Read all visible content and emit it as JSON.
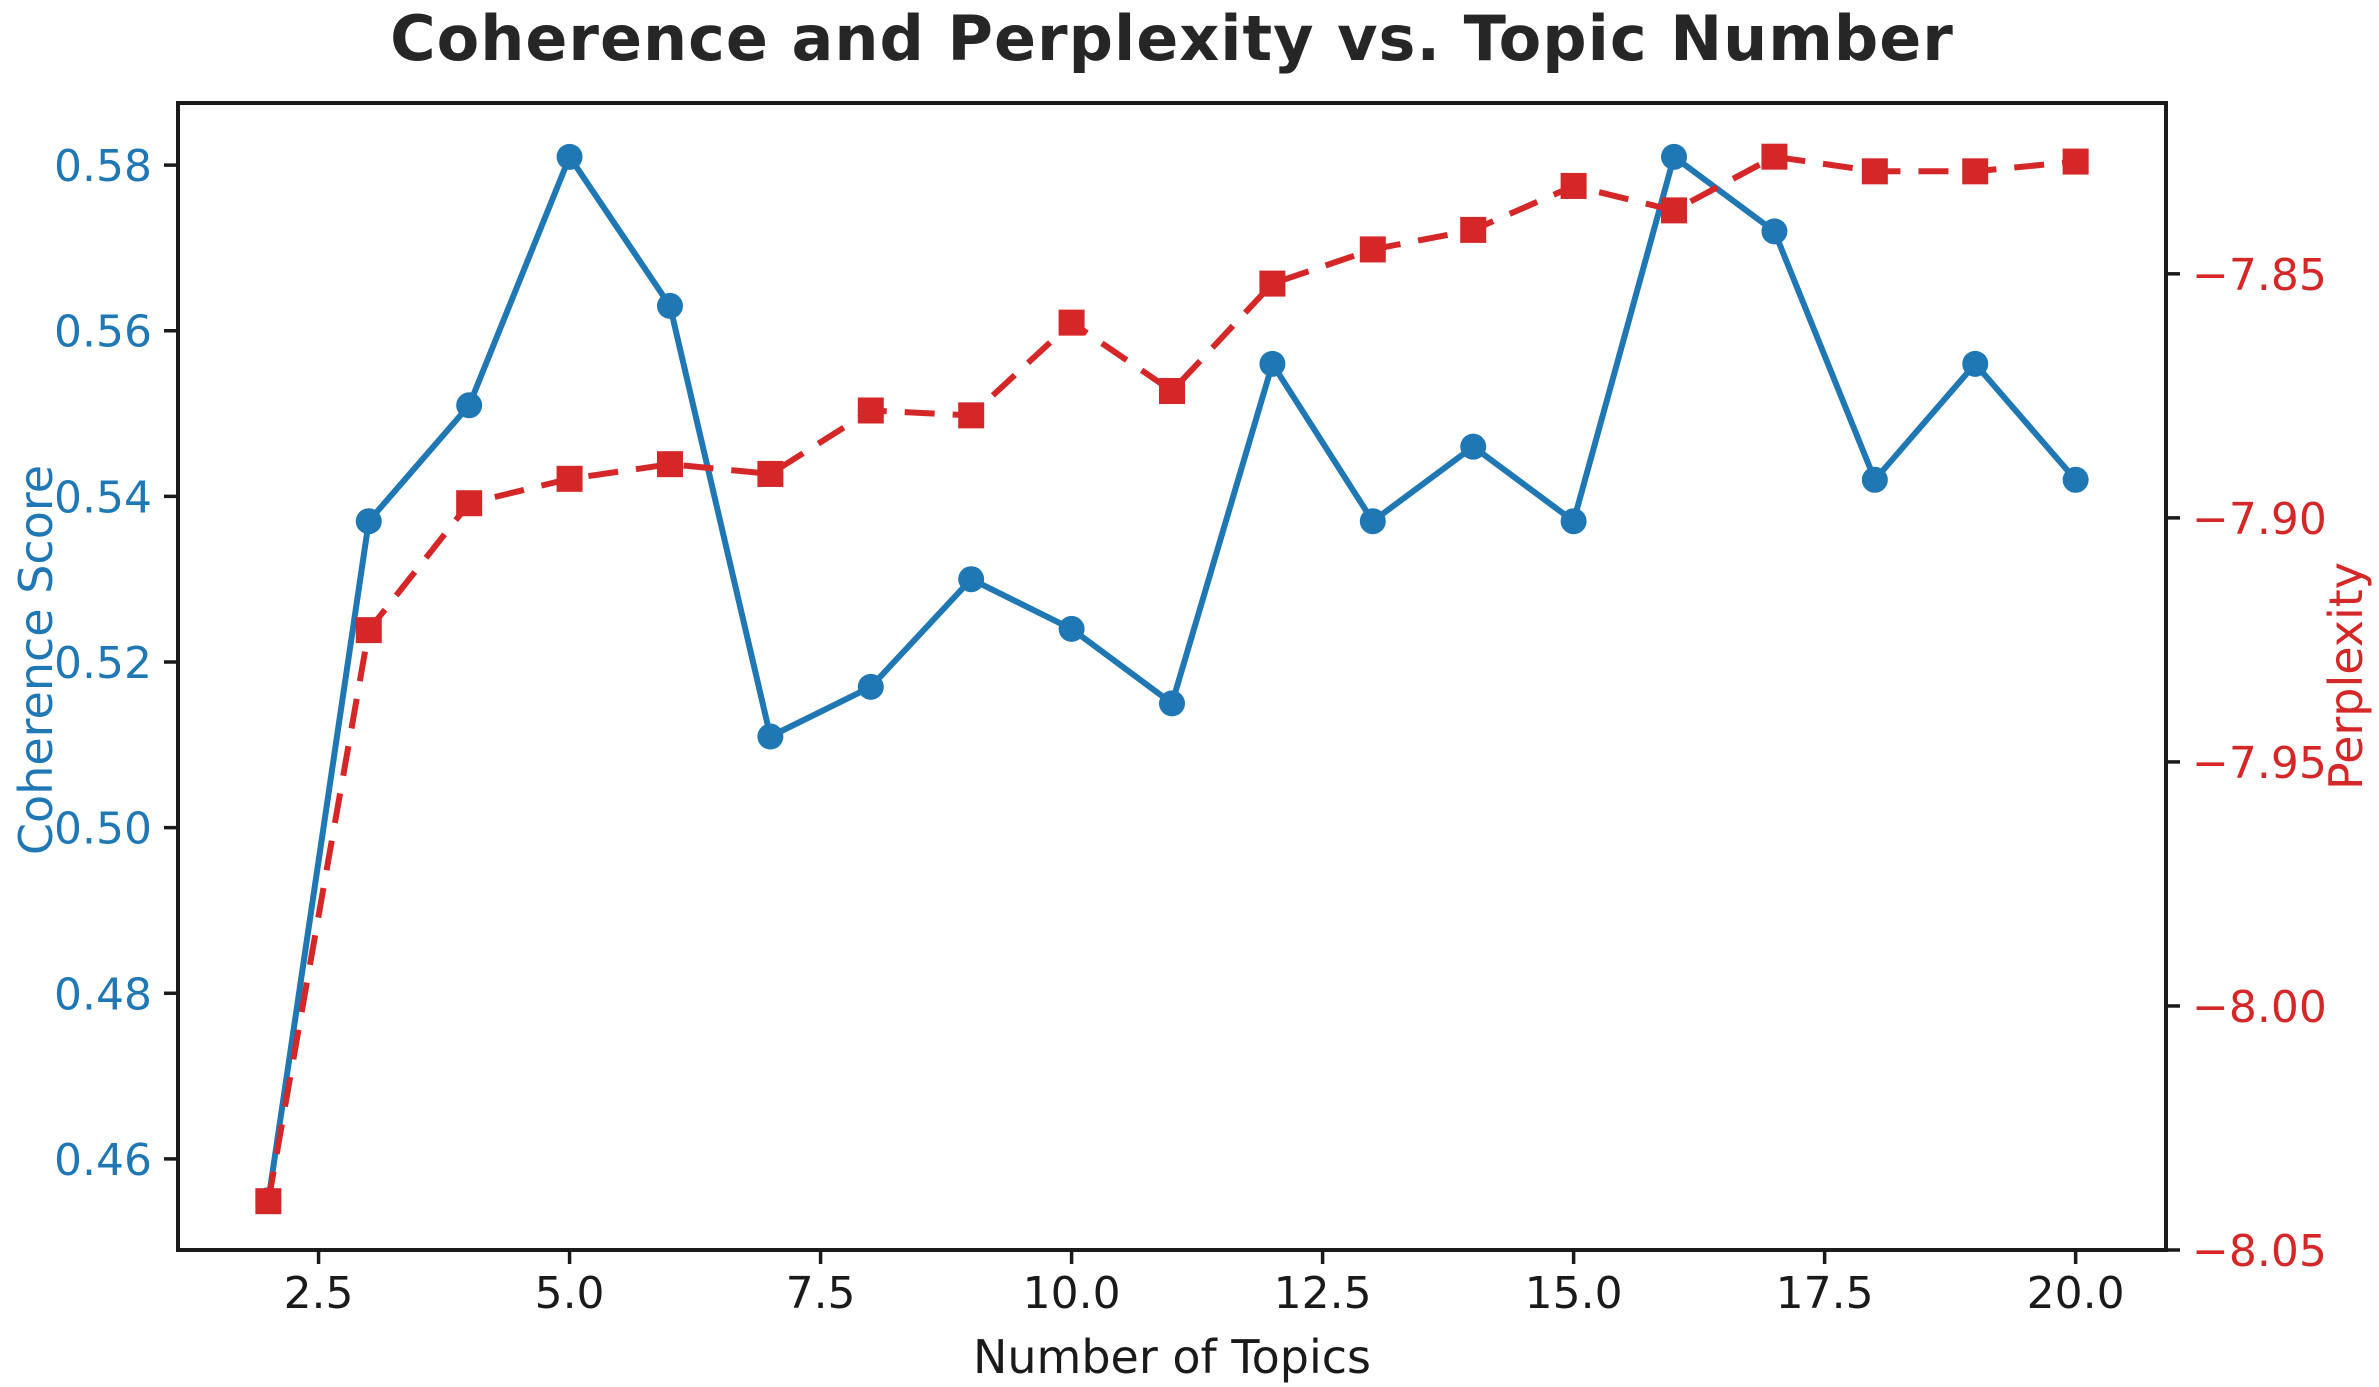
{
  "figure": {
    "title": "Coherence and Perplexity vs. Topic Number",
    "title_color": "#262626",
    "background_color": "#ffffff"
  },
  "chart_data": {
    "type": "line",
    "title": "Coherence and Perplexity vs. Topic Number",
    "xlabel": "Number of Topics",
    "grid": false,
    "legend": null,
    "frame_color": "#1a1a1a",
    "x": [
      2,
      3,
      4,
      5,
      6,
      7,
      8,
      9,
      10,
      11,
      12,
      13,
      14,
      15,
      16,
      17,
      18,
      19,
      20
    ],
    "series": [
      {
        "name": "Coherence Score",
        "axis": "left",
        "color": "#1f77b4",
        "marker": "circle",
        "linestyle": "solid",
        "values": [
          0.455,
          0.537,
          0.551,
          0.581,
          0.563,
          0.511,
          0.517,
          0.53,
          0.524,
          0.515,
          0.556,
          0.537,
          0.546,
          0.537,
          0.581,
          0.572,
          0.542,
          0.556,
          0.542
        ]
      },
      {
        "name": "Perplexity",
        "axis": "right",
        "color": "#d62728",
        "marker": "square",
        "linestyle": "dashed",
        "values": [
          -8.04,
          -7.923,
          -7.897,
          -7.892,
          -7.889,
          -7.891,
          -7.878,
          -7.879,
          -7.86,
          -7.874,
          -7.852,
          -7.845,
          -7.841,
          -7.832,
          -7.837,
          -7.826,
          -7.829,
          -7.829,
          -7.827
        ]
      }
    ],
    "axes": {
      "x": {
        "label": "Number of Topics",
        "color": "#1a1a1a",
        "lim": [
          1.1,
          20.9
        ],
        "ticks": [
          2.5,
          5.0,
          7.5,
          10.0,
          12.5,
          15.0,
          17.5,
          20.0
        ],
        "tick_labels": [
          "2.5",
          "5.0",
          "7.5",
          "10.0",
          "12.5",
          "15.0",
          "17.5",
          "20.0"
        ]
      },
      "left": {
        "label": "Coherence Score",
        "color": "#1f77b4",
        "lim": [
          0.449,
          0.5875
        ],
        "ticks": [
          0.46,
          0.48,
          0.5,
          0.52,
          0.54,
          0.56,
          0.58
        ],
        "tick_labels": [
          "0.46",
          "0.48",
          "0.50",
          "0.52",
          "0.54",
          "0.56",
          "0.58"
        ]
      },
      "right": {
        "label": "Perplexity",
        "color": "#d62728",
        "lim": [
          -8.05,
          -7.815
        ],
        "ticks": [
          -8.05,
          -8.0,
          -7.95,
          -7.9,
          -7.85
        ],
        "tick_labels": [
          "−8.05",
          "−8.00",
          "−7.95",
          "−7.90",
          "−7.85"
        ]
      }
    }
  }
}
